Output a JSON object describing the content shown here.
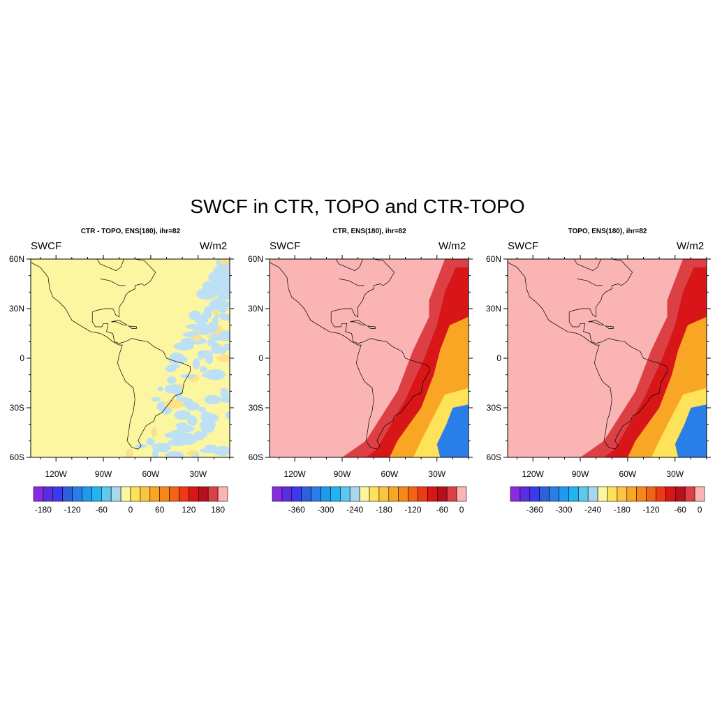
{
  "main_title": "SWCF in CTR, TOPO and CTR-TOPO",
  "panels": [
    {
      "title": "CTR - TOPO, ENS(180), ihr=82",
      "left_label": "SWCF",
      "right_label": "W/m2",
      "lat_ticks": [
        "60N",
        "30N",
        "0",
        "30S",
        "60S"
      ],
      "lon_ticks": [
        "120W",
        "90W",
        "60W",
        "30W"
      ],
      "colorbar_labels": [
        "-180",
        "-120",
        "-60",
        "0",
        "60",
        "120",
        "180"
      ],
      "colorbar_colors": [
        "#8a2be2",
        "#5a2de0",
        "#3a3af0",
        "#2f5fdc",
        "#2a7ee8",
        "#1e9bf0",
        "#22b4f2",
        "#5ec8f0",
        "#a8d8ee",
        "#fdf6a0",
        "#fde25a",
        "#fcc440",
        "#f8a624",
        "#f6871a",
        "#f26414",
        "#ee3a12",
        "#d81618",
        "#b80e1e",
        "#dc4044",
        "#fab4b4"
      ],
      "field_colors": {
        "base": "#fdf6a0",
        "patch_blue": "#bde0f4",
        "patch_orange": "#fce08a"
      }
    },
    {
      "title": "CTR, ENS(180), ihr=82",
      "left_label": "SWCF",
      "right_label": "W/m2",
      "lat_ticks": [
        "60N",
        "30N",
        "0",
        "30S",
        "60S"
      ],
      "lon_ticks": [
        "120W",
        "90W",
        "60W",
        "30W"
      ],
      "colorbar_labels": [
        "-360",
        "-300",
        "-240",
        "-180",
        "-120",
        "-60",
        "0"
      ],
      "colorbar_colors": [
        "#8a2be2",
        "#5a2de0",
        "#3a3af0",
        "#2f5fdc",
        "#2a7ee8",
        "#1e9bf0",
        "#22b4f2",
        "#5ec8f0",
        "#a8d8ee",
        "#fdf6a0",
        "#fde25a",
        "#fcc440",
        "#f8a624",
        "#f6871a",
        "#f26414",
        "#ee3a12",
        "#d81618",
        "#b80e1e",
        "#dc4044",
        "#fab4b4"
      ],
      "field_colors": {
        "base": "#fab4b4",
        "band": "#dc4044",
        "deep": "#d81618",
        "orange": "#f8a624",
        "yellow": "#fde25a",
        "blue": "#2a7ee8"
      }
    },
    {
      "title": "TOPO, ENS(180), ihr=82",
      "left_label": "SWCF",
      "right_label": "W/m2",
      "lat_ticks": [
        "60N",
        "30N",
        "0",
        "30S",
        "60S"
      ],
      "lon_ticks": [
        "120W",
        "90W",
        "60W",
        "30W"
      ],
      "colorbar_labels": [
        "-360",
        "-300",
        "-240",
        "-180",
        "-120",
        "-60",
        "0"
      ],
      "colorbar_colors": [
        "#8a2be2",
        "#5a2de0",
        "#3a3af0",
        "#2f5fdc",
        "#2a7ee8",
        "#1e9bf0",
        "#22b4f2",
        "#5ec8f0",
        "#a8d8ee",
        "#fdf6a0",
        "#fde25a",
        "#fcc440",
        "#f8a624",
        "#f6871a",
        "#f26414",
        "#ee3a12",
        "#d81618",
        "#b80e1e",
        "#dc4044",
        "#fab4b4"
      ],
      "field_colors": {
        "base": "#fab4b4",
        "band": "#dc4044",
        "deep": "#d81618",
        "orange": "#f8a624",
        "yellow": "#fde25a",
        "blue": "#2a7ee8"
      }
    }
  ]
}
